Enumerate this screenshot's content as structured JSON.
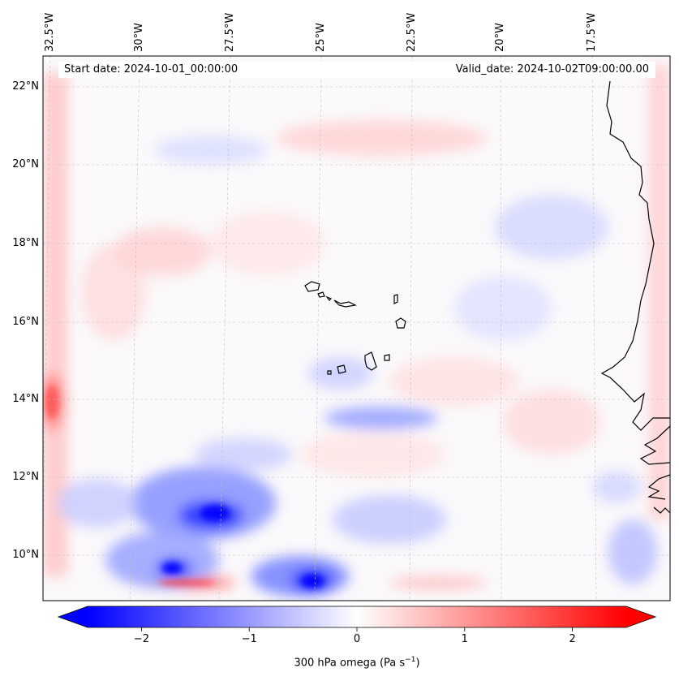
{
  "map": {
    "start_date": "Start date: 2024-10-01_00:00:00",
    "valid_date": "Valid_date: 2024-10-02T09:00:00.00",
    "lon_labels": [
      "32.5°W",
      "30°W",
      "27.5°W",
      "25°W",
      "22.5°W",
      "20°W",
      "17.5°W"
    ],
    "lat_labels": [
      "22°N",
      "20°N",
      "18°N",
      "16°N",
      "14°N",
      "12°N",
      "10°N"
    ],
    "colorbar": {
      "label_main": "300 hPa omega (Pa s",
      "label_exp": "−1",
      "label_end": ")",
      "ticks": [
        "−2",
        "−1",
        "0",
        "1",
        "2"
      ],
      "tick_values": [
        -2,
        -1,
        0,
        1,
        2
      ],
      "range": [
        -2.5,
        2.5
      ],
      "colormap": "bwr",
      "low_color": "#0000ff",
      "mid_color": "#ffffff",
      "high_color": "#ff0000"
    },
    "coastline_color": "#000000",
    "grid": "dashed light gray"
  }
}
